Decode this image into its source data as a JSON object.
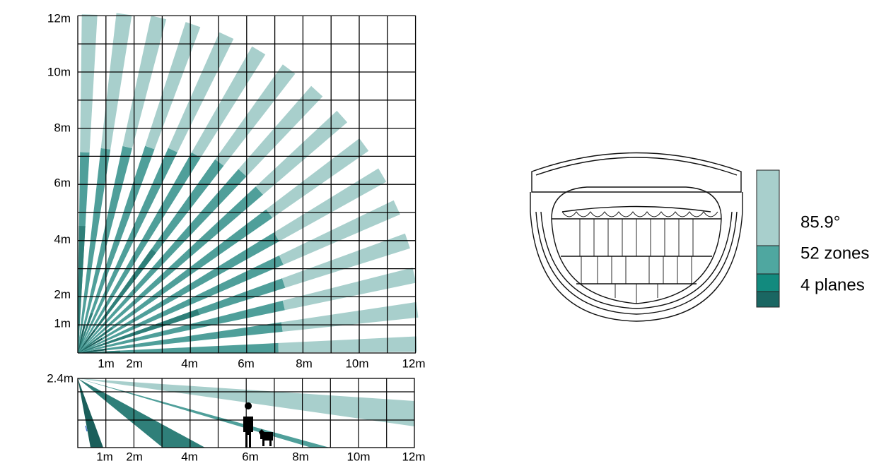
{
  "top_view": {
    "y_labels": [
      "12m",
      "10m",
      "8m",
      "6m",
      "4m",
      "2m",
      "1m"
    ],
    "x_labels": [
      "1m",
      "2m",
      "4m",
      "6m",
      "8m",
      "10m",
      "12m"
    ]
  },
  "side_view": {
    "height_label": "2.4m",
    "x_labels": [
      "1m",
      "2m",
      "4m",
      "6m",
      "8m",
      "10m",
      "12m"
    ]
  },
  "legend": [
    "85.9°",
    "52 zones",
    "4 planes"
  ]
}
